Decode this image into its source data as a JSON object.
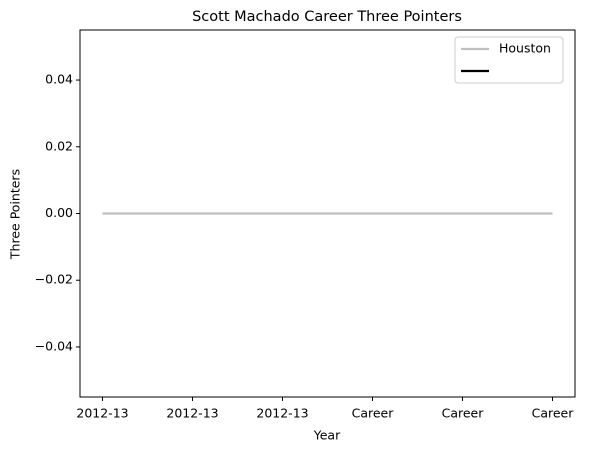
{
  "chart_data": {
    "type": "line",
    "title": "Scott Machado Career Three Pointers",
    "xlabel": "Year",
    "ylabel": "Three Pointers",
    "categories": [
      "2012-13",
      "2012-13",
      "2012-13",
      "Career",
      "Career",
      "Career"
    ],
    "series": [
      {
        "name": "Houston",
        "color": "#bfbfbf",
        "values": [
          0,
          0,
          0,
          0,
          0,
          0
        ]
      },
      {
        "color": "#000000",
        "values": [
          null,
          null,
          null,
          null,
          null,
          null
        ]
      }
    ],
    "ylim": [
      -0.055,
      0.055
    ],
    "yticks": [
      {
        "value": -0.04,
        "label": "−0.04"
      },
      {
        "value": -0.02,
        "label": "−0.02"
      },
      {
        "value": 0,
        "label": "0.00"
      },
      {
        "value": 0.02,
        "label": "0.02"
      },
      {
        "value": 0.04,
        "label": "0.04"
      }
    ],
    "legend": "upper right"
  }
}
